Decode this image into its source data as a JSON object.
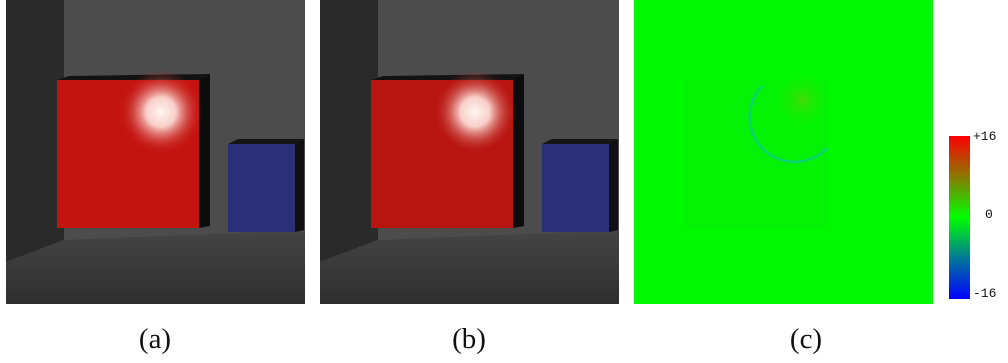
{
  "captions": {
    "a": "(a)",
    "b": "(b)",
    "c": "(c)"
  },
  "colorbar": {
    "labels": {
      "max": "+16",
      "mid": "0",
      "min": "-16"
    },
    "colors": {
      "max": "#ff0000",
      "mid": "#00ff00",
      "min": "#0000ff"
    }
  },
  "scene_colors": {
    "red_cube": "#c41410",
    "blue_box": "#2b2f78",
    "wall": "#4b4b4b",
    "floor": "#3a3a3a",
    "difference_background": "#00f800"
  }
}
